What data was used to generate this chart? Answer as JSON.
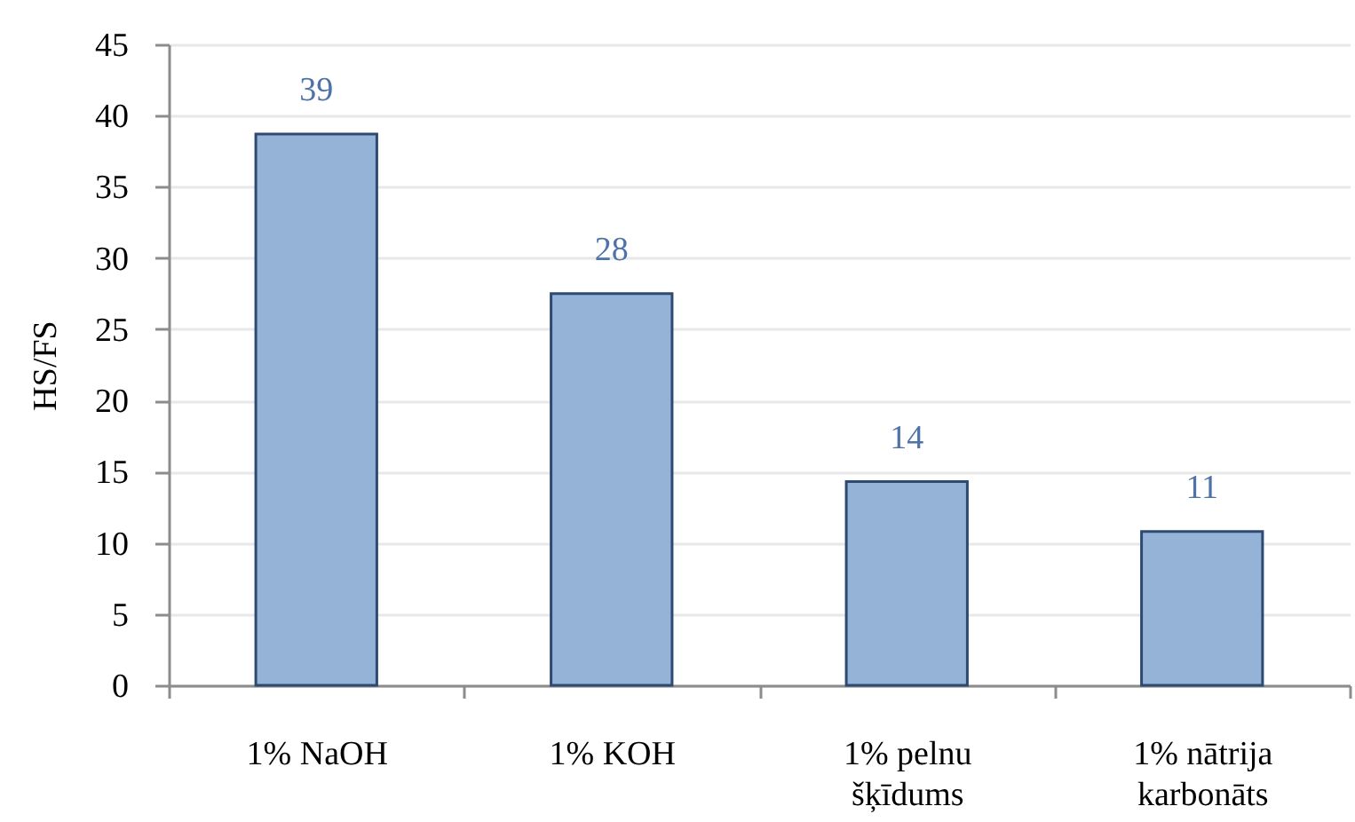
{
  "chart_data": {
    "type": "bar",
    "ylabel": "HS/FS",
    "categories": [
      "1% NaOH",
      "1% KOH",
      "1% pelnu šķīdums",
      "1% nātrija karbonāts"
    ],
    "values": [
      38.7,
      27.5,
      14.3,
      10.8
    ],
    "value_labels": [
      "39",
      "28",
      "14",
      "11"
    ],
    "color": "#95b3d7",
    "ylim": [
      0,
      45
    ],
    "yticks": [
      0,
      5,
      10,
      15,
      20,
      25,
      30,
      35,
      40,
      45
    ],
    "grid": "y"
  }
}
